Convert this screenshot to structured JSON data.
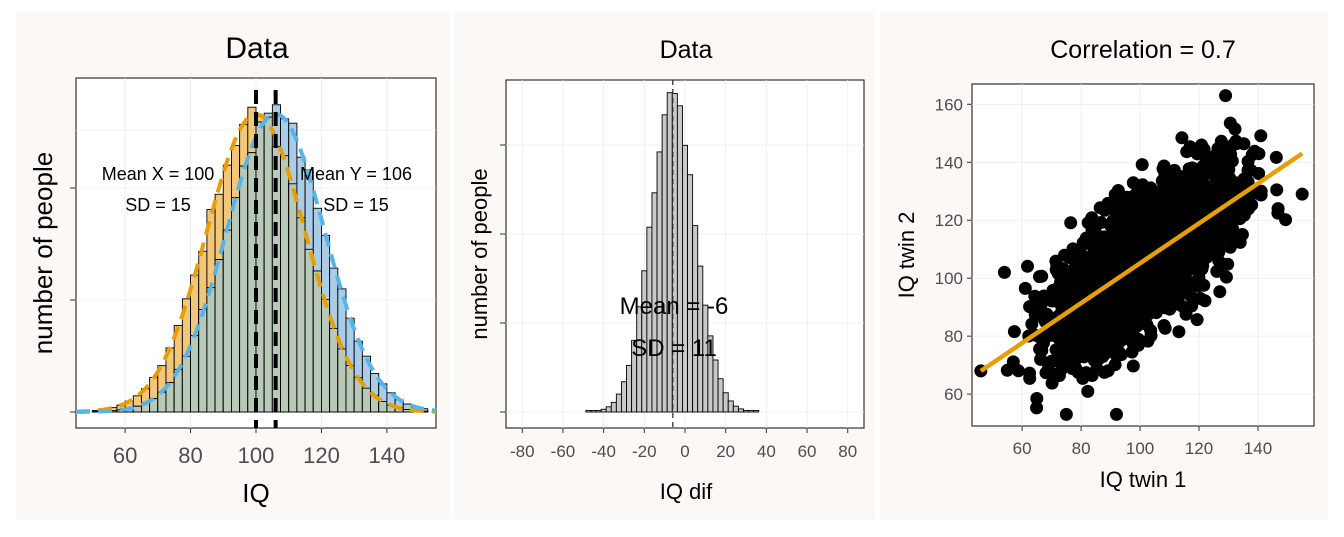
{
  "colors": {
    "x_fill": "#f2c77a",
    "y_fill": "#a9cde8",
    "overlap_fill": "#b9c9b8",
    "x_curve": "#e69f00",
    "y_curve": "#56b4e9",
    "fit_line": "#e69f00",
    "points": "#000000",
    "dif_fill": "#c8c8c8"
  },
  "chart_data": [
    {
      "type": "histogram",
      "title": "Data",
      "xlabel": "IQ",
      "ylabel": "number of people",
      "xlim": [
        45,
        155
      ],
      "xticks": [
        60,
        80,
        100,
        120,
        140
      ],
      "yticks_labelled": false,
      "bin_width": 2.5,
      "grid": true,
      "series": [
        {
          "name": "X",
          "mean": 100,
          "sd": 15,
          "curve": "dashed normal density"
        },
        {
          "name": "Y",
          "mean": 106,
          "sd": 15,
          "curve": "dashed normal density"
        }
      ],
      "vlines": [
        100,
        106
      ],
      "annotations": [
        {
          "lines": [
            "Mean X = 100",
            "SD = 15"
          ]
        },
        {
          "lines": [
            "Mean Y = 106",
            "SD = 15"
          ]
        }
      ]
    },
    {
      "type": "histogram",
      "title": "Data",
      "xlabel": "IQ dif",
      "ylabel": "number of people",
      "xlim": [
        -88,
        88
      ],
      "xticks": [
        -80,
        -60,
        -40,
        -20,
        0,
        20,
        40,
        60,
        80
      ],
      "yticks_labelled": false,
      "bin_width": 2.5,
      "grid": true,
      "mean": -6,
      "sd": 11,
      "vline": -6,
      "annotations": [
        {
          "lines": [
            "Mean = -6",
            "SD = 11"
          ]
        }
      ]
    },
    {
      "type": "scatter",
      "title": "Correlation = 0.7",
      "xlabel": "IQ twin 1",
      "ylabel": "IQ twin 2",
      "xlim": [
        43,
        159
      ],
      "ylim": [
        49,
        167
      ],
      "xticks": [
        60,
        80,
        100,
        120,
        140
      ],
      "yticks": [
        60,
        80,
        100,
        120,
        140,
        160
      ],
      "grid": true,
      "correlation": 0.7,
      "mean_x": 100,
      "mean_y": 106,
      "sd": 15,
      "fit_line": {
        "x": [
          46,
          155
        ],
        "y": [
          68,
          143
        ]
      },
      "notable_points": [
        {
          "x": 129,
          "y": 163
        },
        {
          "x": 92,
          "y": 53
        },
        {
          "x": 75,
          "y": 53
        },
        {
          "x": 155,
          "y": 129
        },
        {
          "x": 54,
          "y": 102
        },
        {
          "x": 46,
          "y": 68
        }
      ]
    }
  ]
}
